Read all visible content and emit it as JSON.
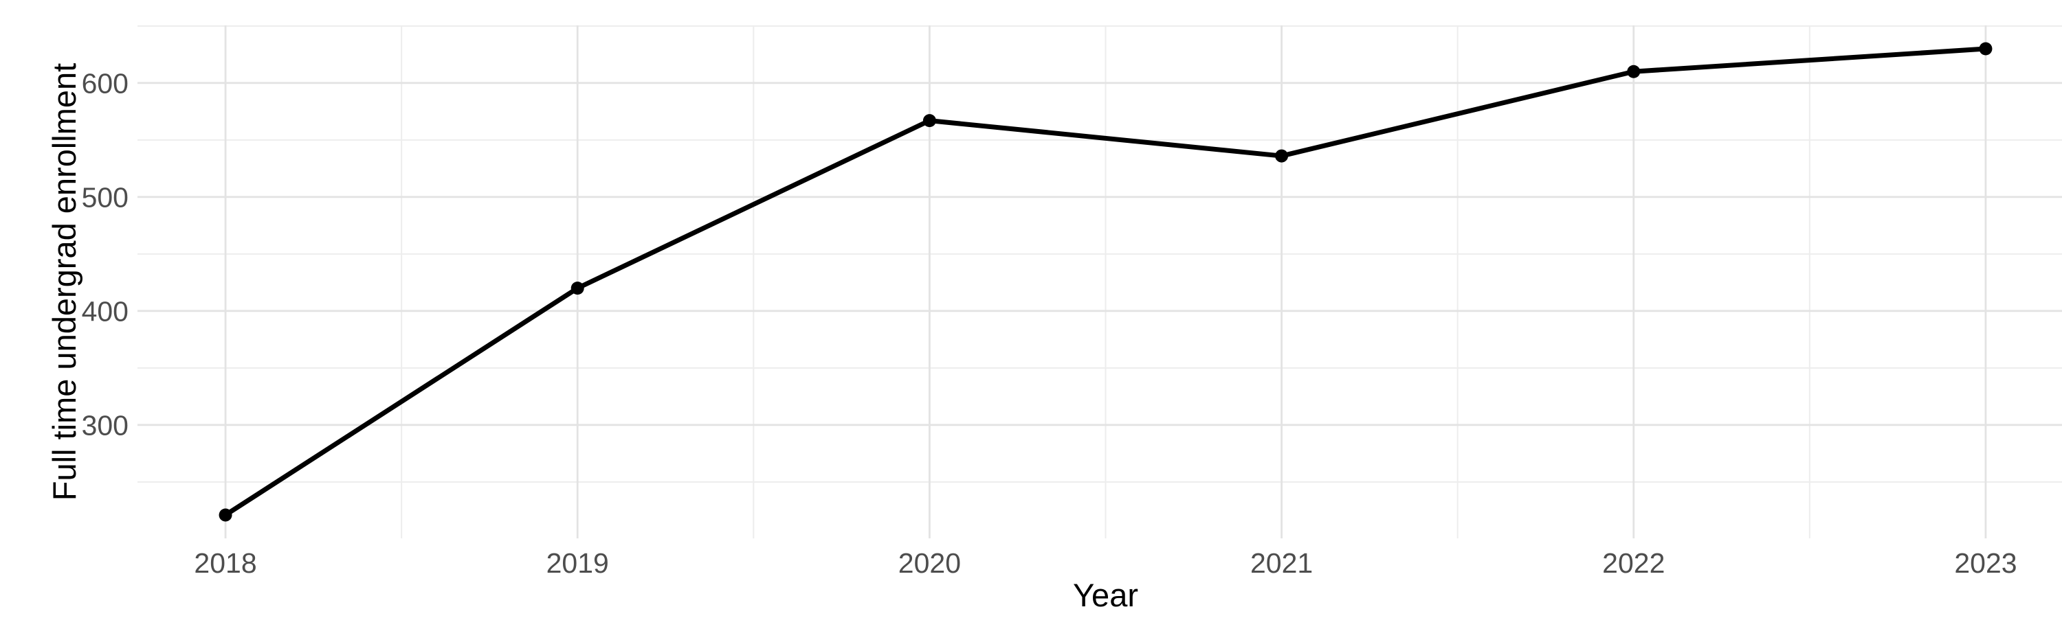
{
  "chart_data": {
    "type": "line",
    "title": "",
    "xlabel": "Year",
    "ylabel": "Full time undergrad enrollment",
    "x": [
      2018,
      2019,
      2020,
      2021,
      2022,
      2023
    ],
    "x_ticks": [
      "2018",
      "2019",
      "2020",
      "2021",
      "2022",
      "2023"
    ],
    "y_ticks": [
      300,
      400,
      500,
      600
    ],
    "series": [
      {
        "name": "Full time undergrad enrollment",
        "values": [
          221,
          420,
          567,
          536,
          610,
          630
        ]
      }
    ],
    "x_minor_gridlines": [
      2018.5,
      2019.5,
      2020.5,
      2021.5,
      2022.5
    ],
    "y_minor_gridlines": [
      250,
      350,
      450,
      550,
      650
    ],
    "xlim": [
      2017.75,
      2023.25
    ],
    "ylim": [
      200.5,
      650.5
    ],
    "grid": true,
    "legend": false,
    "marker": "point",
    "colors": {
      "line": "#000000",
      "point": "#000000",
      "grid_major": "#E3E3E3",
      "grid_minor": "#EDEDED",
      "tick_label": "#4D4D4D",
      "axis_title": "#000000",
      "background": "#FFFFFF"
    }
  }
}
